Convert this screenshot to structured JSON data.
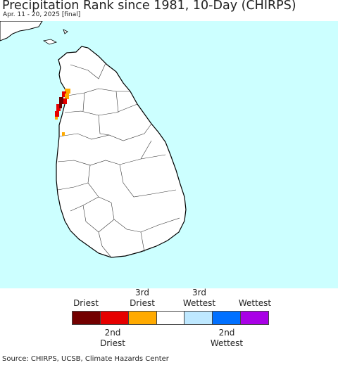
{
  "header": {
    "title": "Precipitation Rank since 1981, 10-Day (CHIRPS)",
    "subtitle": "Apr. 11 - 20, 2025 [final]"
  },
  "map": {
    "region": "Sri Lanka",
    "ocean_color": "#ccffff",
    "land_color": "#ffffff"
  },
  "legend": {
    "top_labels": [
      "Driest",
      "3rd\nDriest",
      "3rd\nWettest",
      "Wettest"
    ],
    "bottom_labels": [
      "2nd\nDriest",
      "2nd\nWettest"
    ],
    "swatches": [
      {
        "color": "#730000"
      },
      {
        "color": "#e60000"
      },
      {
        "color": "#ffaa00"
      },
      {
        "color": "#ffffff"
      },
      {
        "color": "#bee8ff"
      },
      {
        "color": "#0070ff"
      },
      {
        "color": "#a900e6"
      }
    ]
  },
  "footer": {
    "source": "Source: CHIRPS, UCSB, Climate Hazards Center"
  }
}
